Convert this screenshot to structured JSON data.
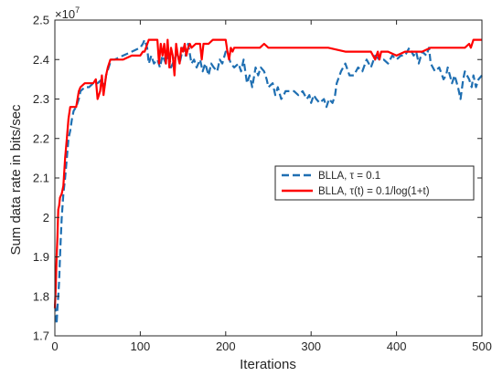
{
  "chart_data": {
    "type": "line",
    "xlabel": "Iterations",
    "ylabel": "Sum data rate in bits/sec",
    "exponent_label": "×10",
    "exponent_power": "7",
    "xlim": [
      0,
      500
    ],
    "ylim": [
      1.7,
      2.5
    ],
    "xticks": [
      0,
      100,
      200,
      300,
      400,
      500
    ],
    "yticks": [
      1.7,
      1.8,
      1.9,
      2.0,
      2.1,
      2.2,
      2.3,
      2.4,
      2.5
    ],
    "xtick_labels": [
      "0",
      "100",
      "200",
      "300",
      "400",
      "500"
    ],
    "ytick_labels": [
      "1.7",
      "1.8",
      "1.9",
      "2",
      "2.1",
      "2.2",
      "2.3",
      "2.4",
      "2.5"
    ],
    "grid": false,
    "legend_position": "center-right",
    "series": [
      {
        "name": "BLLA, τ = 0.1",
        "color": "#1f6fb2",
        "dash": "dashed",
        "points": [
          [
            0,
            1.78
          ],
          [
            1,
            1.76
          ],
          [
            2,
            1.73
          ],
          [
            3,
            1.77
          ],
          [
            4,
            1.8
          ],
          [
            5,
            1.84
          ],
          [
            6,
            1.9
          ],
          [
            7,
            1.95
          ],
          [
            8,
            2.0
          ],
          [
            9,
            2.03
          ],
          [
            10,
            2.06
          ],
          [
            12,
            2.1
          ],
          [
            14,
            2.15
          ],
          [
            16,
            2.2
          ],
          [
            18,
            2.22
          ],
          [
            20,
            2.25
          ],
          [
            22,
            2.27
          ],
          [
            25,
            2.28
          ],
          [
            28,
            2.3
          ],
          [
            30,
            2.32
          ],
          [
            35,
            2.33
          ],
          [
            40,
            2.33
          ],
          [
            45,
            2.34
          ],
          [
            50,
            2.34
          ],
          [
            55,
            2.35
          ],
          [
            58,
            2.33
          ],
          [
            60,
            2.36
          ],
          [
            63,
            2.38
          ],
          [
            66,
            2.4
          ],
          [
            70,
            2.4
          ],
          [
            80,
            2.41
          ],
          [
            90,
            2.42
          ],
          [
            100,
            2.43
          ],
          [
            103,
            2.44
          ],
          [
            105,
            2.45
          ],
          [
            108,
            2.43
          ],
          [
            110,
            2.39
          ],
          [
            113,
            2.41
          ],
          [
            116,
            2.39
          ],
          [
            120,
            2.4
          ],
          [
            123,
            2.38
          ],
          [
            126,
            2.41
          ],
          [
            130,
            2.39
          ],
          [
            133,
            2.42
          ],
          [
            136,
            2.38
          ],
          [
            140,
            2.4
          ],
          [
            143,
            2.42
          ],
          [
            146,
            2.39
          ],
          [
            150,
            2.43
          ],
          [
            153,
            2.41
          ],
          [
            156,
            2.44
          ],
          [
            160,
            2.39
          ],
          [
            163,
            2.4
          ],
          [
            166,
            2.38
          ],
          [
            170,
            2.4
          ],
          [
            173,
            2.37
          ],
          [
            176,
            2.39
          ],
          [
            180,
            2.36
          ],
          [
            183,
            2.39
          ],
          [
            186,
            2.38
          ],
          [
            190,
            2.37
          ],
          [
            193,
            2.4
          ],
          [
            196,
            2.39
          ],
          [
            200,
            2.42
          ],
          [
            203,
            2.41
          ],
          [
            206,
            2.39
          ],
          [
            210,
            2.38
          ],
          [
            215,
            2.39
          ],
          [
            218,
            2.37
          ],
          [
            221,
            2.4
          ],
          [
            225,
            2.34
          ],
          [
            228,
            2.36
          ],
          [
            231,
            2.33
          ],
          [
            235,
            2.38
          ],
          [
            238,
            2.36
          ],
          [
            241,
            2.38
          ],
          [
            245,
            2.37
          ],
          [
            248,
            2.35
          ],
          [
            250,
            2.33
          ],
          [
            255,
            2.34
          ],
          [
            258,
            2.31
          ],
          [
            261,
            2.33
          ],
          [
            265,
            2.3
          ],
          [
            268,
            2.31
          ],
          [
            270,
            2.32
          ],
          [
            280,
            2.32
          ],
          [
            285,
            2.31
          ],
          [
            290,
            2.32
          ],
          [
            295,
            2.3
          ],
          [
            298,
            2.31
          ],
          [
            300,
            2.29
          ],
          [
            303,
            2.31
          ],
          [
            306,
            2.3
          ],
          [
            310,
            2.29
          ],
          [
            315,
            2.3
          ],
          [
            318,
            2.28
          ],
          [
            321,
            2.3
          ],
          [
            325,
            2.29
          ],
          [
            328,
            2.31
          ],
          [
            330,
            2.34
          ],
          [
            335,
            2.37
          ],
          [
            340,
            2.39
          ],
          [
            345,
            2.36
          ],
          [
            350,
            2.36
          ],
          [
            355,
            2.38
          ],
          [
            360,
            2.37
          ],
          [
            365,
            2.4
          ],
          [
            370,
            2.38
          ],
          [
            375,
            2.41
          ],
          [
            380,
            2.4
          ],
          [
            385,
            2.4
          ],
          [
            390,
            2.39
          ],
          [
            395,
            2.41
          ],
          [
            400,
            2.4
          ],
          [
            405,
            2.41
          ],
          [
            410,
            2.41
          ],
          [
            415,
            2.43
          ],
          [
            420,
            2.41
          ],
          [
            423,
            2.42
          ],
          [
            426,
            2.39
          ],
          [
            430,
            2.42
          ],
          [
            435,
            2.41
          ],
          [
            438,
            2.43
          ],
          [
            440,
            2.39
          ],
          [
            445,
            2.37
          ],
          [
            450,
            2.38
          ],
          [
            455,
            2.35
          ],
          [
            458,
            2.36
          ],
          [
            460,
            2.38
          ],
          [
            465,
            2.34
          ],
          [
            468,
            2.36
          ],
          [
            472,
            2.33
          ],
          [
            475,
            2.3
          ],
          [
            478,
            2.35
          ],
          [
            480,
            2.37
          ],
          [
            485,
            2.35
          ],
          [
            488,
            2.33
          ],
          [
            490,
            2.36
          ],
          [
            493,
            2.33
          ],
          [
            496,
            2.35
          ],
          [
            500,
            2.36
          ]
        ]
      },
      {
        "name": "BLLA, τ(t) = 0.1/log(1+t)",
        "color": "#ff0000",
        "dash": "solid",
        "points": [
          [
            0,
            1.77
          ],
          [
            1,
            1.82
          ],
          [
            2,
            1.9
          ],
          [
            3,
            1.95
          ],
          [
            4,
            2.02
          ],
          [
            5,
            2.03
          ],
          [
            6,
            2.05
          ],
          [
            8,
            2.06
          ],
          [
            10,
            2.08
          ],
          [
            12,
            2.15
          ],
          [
            14,
            2.2
          ],
          [
            16,
            2.25
          ],
          [
            18,
            2.28
          ],
          [
            20,
            2.28
          ],
          [
            25,
            2.28
          ],
          [
            28,
            2.32
          ],
          [
            30,
            2.33
          ],
          [
            35,
            2.34
          ],
          [
            40,
            2.34
          ],
          [
            45,
            2.34
          ],
          [
            48,
            2.35
          ],
          [
            50,
            2.3
          ],
          [
            53,
            2.32
          ],
          [
            55,
            2.36
          ],
          [
            57,
            2.31
          ],
          [
            60,
            2.36
          ],
          [
            62,
            2.38
          ],
          [
            65,
            2.4
          ],
          [
            70,
            2.4
          ],
          [
            80,
            2.4
          ],
          [
            90,
            2.41
          ],
          [
            100,
            2.41
          ],
          [
            103,
            2.42
          ],
          [
            105,
            2.42
          ],
          [
            110,
            2.45
          ],
          [
            115,
            2.45
          ],
          [
            120,
            2.45
          ],
          [
            122,
            2.39
          ],
          [
            124,
            2.44
          ],
          [
            126,
            2.41
          ],
          [
            128,
            2.44
          ],
          [
            130,
            2.39
          ],
          [
            132,
            2.45
          ],
          [
            134,
            2.38
          ],
          [
            136,
            2.43
          ],
          [
            138,
            2.41
          ],
          [
            140,
            2.36
          ],
          [
            142,
            2.44
          ],
          [
            144,
            2.41
          ],
          [
            146,
            2.39
          ],
          [
            148,
            2.43
          ],
          [
            150,
            2.42
          ],
          [
            152,
            2.44
          ],
          [
            154,
            2.41
          ],
          [
            156,
            2.43
          ],
          [
            158,
            2.44
          ],
          [
            160,
            2.43
          ],
          [
            165,
            2.44
          ],
          [
            170,
            2.44
          ],
          [
            172,
            2.4
          ],
          [
            174,
            2.44
          ],
          [
            176,
            2.44
          ],
          [
            180,
            2.44
          ],
          [
            185,
            2.45
          ],
          [
            190,
            2.45
          ],
          [
            200,
            2.45
          ],
          [
            202,
            2.42
          ],
          [
            204,
            2.4
          ],
          [
            206,
            2.43
          ],
          [
            208,
            2.42
          ],
          [
            210,
            2.43
          ],
          [
            215,
            2.43
          ],
          [
            220,
            2.43
          ],
          [
            225,
            2.43
          ],
          [
            230,
            2.43
          ],
          [
            235,
            2.43
          ],
          [
            240,
            2.43
          ],
          [
            245,
            2.44
          ],
          [
            250,
            2.43
          ],
          [
            260,
            2.43
          ],
          [
            270,
            2.43
          ],
          [
            280,
            2.43
          ],
          [
            290,
            2.43
          ],
          [
            300,
            2.43
          ],
          [
            320,
            2.43
          ],
          [
            340,
            2.42
          ],
          [
            360,
            2.42
          ],
          [
            370,
            2.42
          ],
          [
            375,
            2.4
          ],
          [
            378,
            2.42
          ],
          [
            380,
            2.4
          ],
          [
            382,
            2.42
          ],
          [
            390,
            2.42
          ],
          [
            400,
            2.41
          ],
          [
            410,
            2.42
          ],
          [
            420,
            2.42
          ],
          [
            430,
            2.42
          ],
          [
            440,
            2.43
          ],
          [
            450,
            2.43
          ],
          [
            460,
            2.43
          ],
          [
            470,
            2.43
          ],
          [
            480,
            2.43
          ],
          [
            485,
            2.44
          ],
          [
            487,
            2.43
          ],
          [
            490,
            2.45
          ],
          [
            495,
            2.45
          ],
          [
            500,
            2.45
          ]
        ]
      }
    ]
  }
}
